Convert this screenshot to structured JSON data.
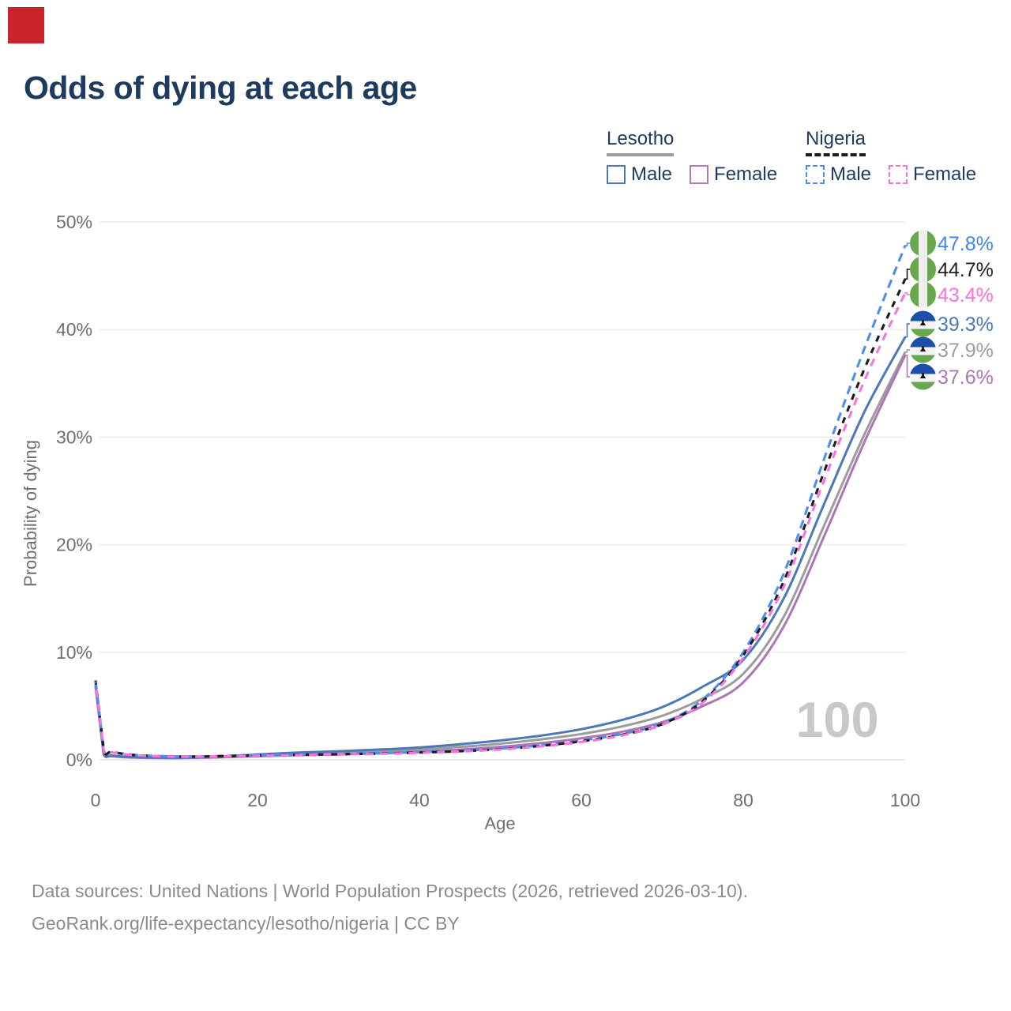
{
  "click_marker": {
    "color": "#c9242b"
  },
  "title": "Odds of dying at each age",
  "legend": {
    "groups": [
      {
        "country": "Lesotho",
        "underline_style": "solid",
        "underline_color": "#9c9c9c",
        "items": [
          {
            "label": "Male",
            "color": "#4a79b8",
            "dashed": false
          },
          {
            "label": "Female",
            "color": "#b07ab8",
            "dashed": false
          }
        ]
      },
      {
        "country": "Nigeria",
        "underline_style": "dashed",
        "underline_color": "#1c1c1c",
        "items": [
          {
            "label": "Male",
            "color": "#4e8cf0",
            "dashed": true
          },
          {
            "label": "Female",
            "color": "#f973de",
            "dashed": true
          }
        ]
      }
    ]
  },
  "chart_data": {
    "type": "line",
    "title": "Odds of dying at each age",
    "xlabel": "Age",
    "ylabel": "Probability of dying",
    "xlim": [
      0,
      100
    ],
    "ylim_percent": [
      0,
      50
    ],
    "grid": "horizontal",
    "x_ticks": [
      0,
      20,
      40,
      60,
      80,
      100
    ],
    "x_tick_labels": [
      "0",
      "20",
      "40",
      "60",
      "80",
      "100"
    ],
    "y_ticks_percent": [
      0,
      10,
      20,
      30,
      40,
      50
    ],
    "y_tick_labels": [
      "0%",
      "10%",
      "20%",
      "30%",
      "40%",
      "50%"
    ],
    "x": [
      0,
      1,
      2,
      5,
      10,
      15,
      20,
      25,
      30,
      35,
      40,
      45,
      50,
      55,
      60,
      65,
      70,
      75,
      80,
      85,
      90,
      95,
      100
    ],
    "series": [
      {
        "name": "Nigeria Male",
        "country": "Nigeria",
        "sex": "male",
        "flag": "nigeria",
        "color": "#4e8cf0",
        "label_color": "#3f83f0",
        "dashed": true,
        "end_label": "47.8%",
        "values": [
          7.4,
          1.0,
          0.75,
          0.45,
          0.32,
          0.35,
          0.45,
          0.5,
          0.55,
          0.62,
          0.72,
          0.85,
          1.05,
          1.35,
          1.8,
          2.4,
          3.4,
          5.6,
          10.0,
          17.3,
          28.0,
          38.3,
          47.8
        ]
      },
      {
        "name": "Nigeria Both sexes",
        "country": "Nigeria",
        "sex": "both",
        "flag": "nigeria",
        "color": "#1c1c1c",
        "label_color": "#1f1f1f",
        "dashed": true,
        "end_label": "44.7%",
        "values": [
          7.3,
          0.97,
          0.72,
          0.43,
          0.3,
          0.33,
          0.42,
          0.47,
          0.52,
          0.58,
          0.68,
          0.8,
          1.0,
          1.3,
          1.72,
          2.32,
          3.32,
          5.45,
          9.7,
          16.6,
          26.8,
          36.4,
          44.7
        ]
      },
      {
        "name": "Nigeria Female",
        "country": "Nigeria",
        "sex": "female",
        "flag": "nigeria",
        "color": "#f973de",
        "label_color": "#ff6fd8",
        "dashed": true,
        "end_label": "43.4%",
        "values": [
          7.2,
          0.94,
          0.7,
          0.42,
          0.29,
          0.31,
          0.4,
          0.45,
          0.5,
          0.55,
          0.65,
          0.77,
          0.96,
          1.25,
          1.66,
          2.26,
          3.26,
          5.3,
          9.5,
          16.1,
          26.0,
          35.3,
          43.4
        ]
      },
      {
        "name": "Lesotho Male",
        "country": "Lesotho",
        "sex": "male",
        "flag": "lesotho",
        "color": "#4a79b8",
        "label_color": "#4a79b8",
        "dashed": false,
        "end_label": "39.3%",
        "values": [
          7.0,
          0.6,
          0.4,
          0.25,
          0.2,
          0.3,
          0.5,
          0.68,
          0.8,
          0.95,
          1.15,
          1.45,
          1.8,
          2.25,
          2.85,
          3.7,
          4.9,
          6.8,
          9.3,
          15.0,
          23.8,
          32.4,
          39.3
        ]
      },
      {
        "name": "Lesotho Both sexes",
        "country": "Lesotho",
        "sex": "both",
        "flag": "lesotho",
        "color": "#9c9c9c",
        "label_color": "#9e9e9e",
        "dashed": false,
        "end_label": "37.9%",
        "values": [
          6.9,
          0.55,
          0.36,
          0.22,
          0.18,
          0.26,
          0.42,
          0.55,
          0.65,
          0.78,
          0.95,
          1.2,
          1.5,
          1.9,
          2.4,
          3.1,
          4.1,
          5.7,
          8.0,
          13.3,
          21.8,
          30.3,
          37.9
        ]
      },
      {
        "name": "Lesotho Female",
        "country": "Lesotho",
        "sex": "female",
        "flag": "lesotho",
        "color": "#aa77b3",
        "label_color": "#a878b8",
        "dashed": false,
        "end_label": "37.6%",
        "values": [
          6.8,
          0.5,
          0.33,
          0.2,
          0.16,
          0.22,
          0.33,
          0.42,
          0.5,
          0.6,
          0.75,
          0.95,
          1.2,
          1.55,
          2.0,
          2.6,
          3.5,
          5.0,
          7.2,
          12.4,
          20.8,
          29.6,
          37.6
        ]
      }
    ]
  },
  "hover_age_indicator": "100",
  "footer": {
    "line1": "Data sources: United Nations | World Population Prospects (2026, retrieved 2026-03-10).",
    "line2": "GeoRank.org/life-expectancy/lesotho/nigeria | CC BY"
  },
  "colors": {
    "title": "#1e3a5f",
    "axis_text": "#6f6f6f",
    "grid": "#ececec",
    "footer_text": "#8b8b8b",
    "watermark": "#c8c8c8",
    "flag_green": "#69a74e",
    "flag_blue": "#1c4fa8",
    "flag_white": "#efefef"
  }
}
